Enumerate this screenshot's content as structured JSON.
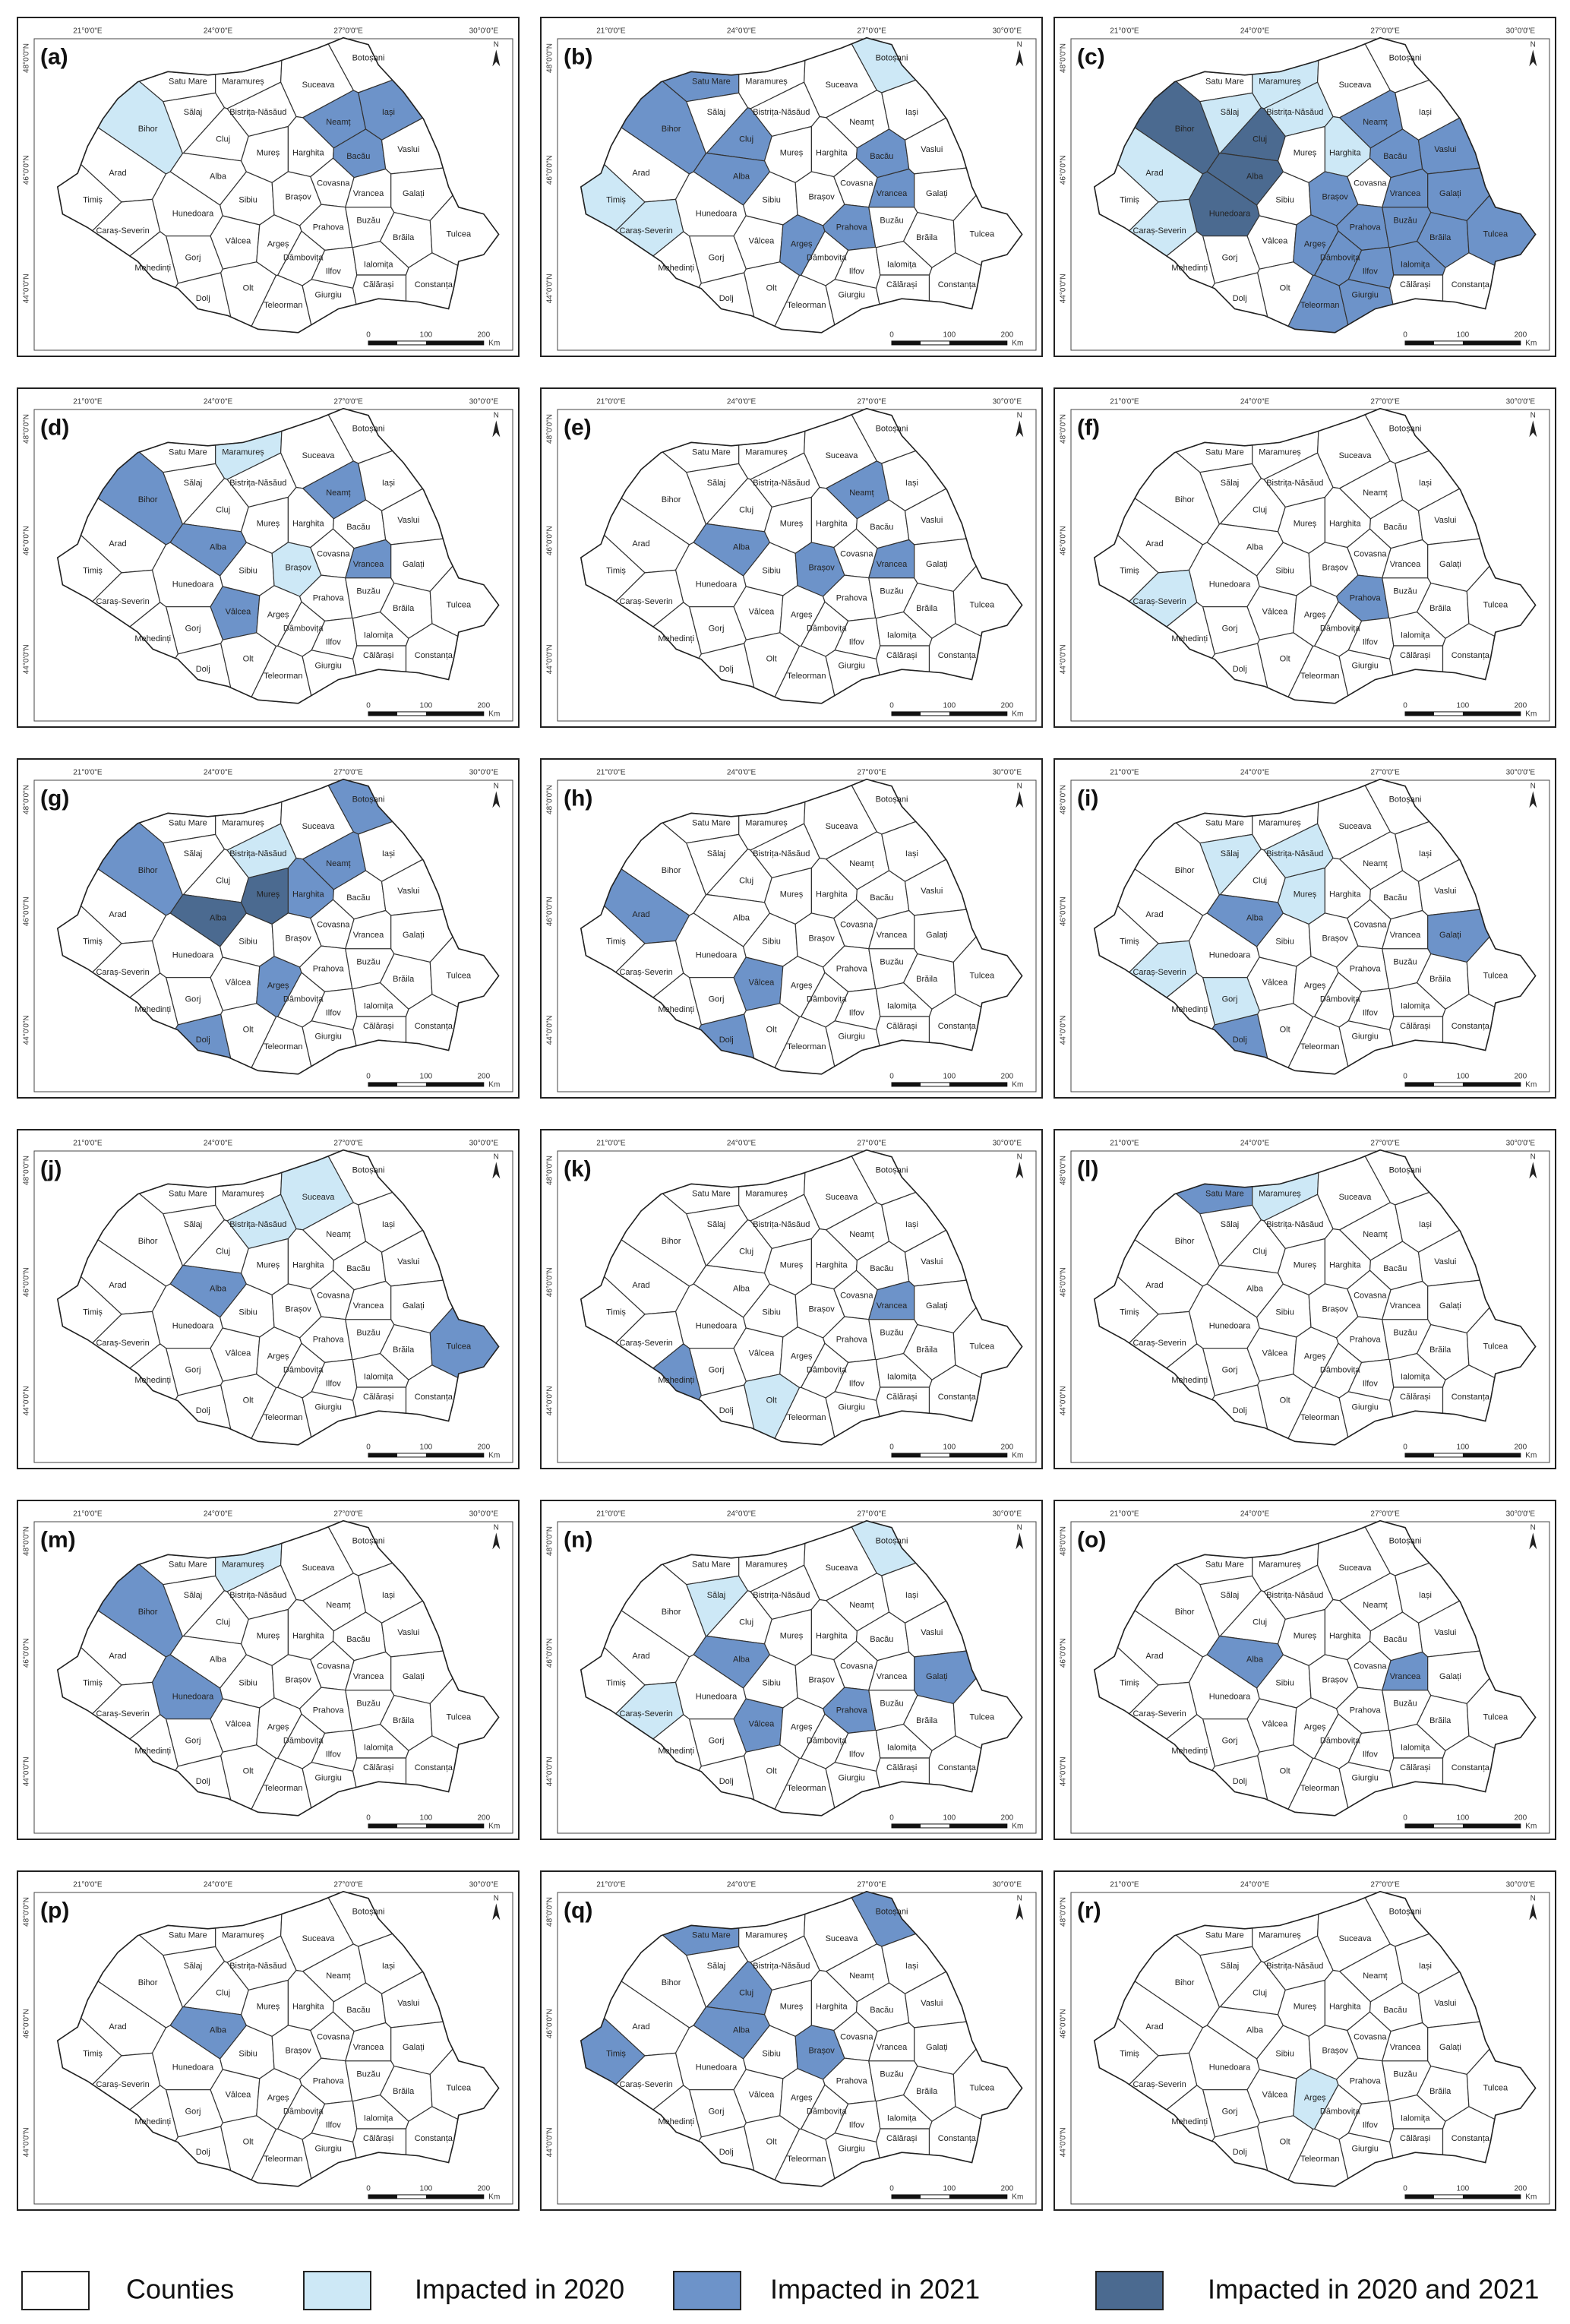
{
  "counties": [
    "Satu Mare",
    "Maramureș",
    "Botoșani",
    "Suceava",
    "Bihor",
    "Sălaj",
    "Bistrița-Năsăud",
    "Neamț",
    "Iași",
    "Cluj",
    "Mureș",
    "Harghita",
    "Bacău",
    "Vaslui",
    "Arad",
    "Alba",
    "Sibiu",
    "Brașov",
    "Covasna",
    "Vrancea",
    "Galați",
    "Timiș",
    "Hunedoara",
    "Caraș-Severin",
    "Vâlcea",
    "Argeș",
    "Prahova",
    "Buzău",
    "Brăila",
    "Tulcea",
    "Gorj",
    "Mehedinți",
    "Dâmbovița",
    "Ilfov",
    "Ialomița",
    "Dolj",
    "Olt",
    "Teleorman",
    "Giurgiu",
    "Călărași",
    "Constanța"
  ],
  "longitudes": [
    "21°0'0\"E",
    "24°0'0\"E",
    "27°0'0\"E",
    "30°0'0\"E"
  ],
  "latitudes": [
    "48°0'0\"N",
    "46°0'0\"N",
    "44°0'0\"N"
  ],
  "north": "N",
  "scale": {
    "ticks": [
      "0",
      "100",
      "200"
    ],
    "unit": "Km"
  },
  "legend": [
    {
      "label": "Counties",
      "color": "#ffffff"
    },
    {
      "label": "Impacted in 2020",
      "color": "#cde8f6"
    },
    {
      "label": "Impacted in 2021",
      "color": "#6d93c9"
    },
    {
      "label": "Impacted in 2020 and 2021",
      "color": "#4b6a90"
    }
  ],
  "panels": [
    {
      "label": "(a)",
      "impacted_2020": [
        "Bihor"
      ],
      "impacted_2021": [
        "Neamț",
        "Iași",
        "Bacău"
      ],
      "impacted_both": []
    },
    {
      "label": "(b)",
      "impacted_2020": [
        "Botoșani",
        "Timiș",
        "Caraș-Severin"
      ],
      "impacted_2021": [
        "Satu Mare",
        "Bihor",
        "Cluj",
        "Alba",
        "Bacău",
        "Vrancea",
        "Argeș",
        "Prahova"
      ],
      "impacted_both": []
    },
    {
      "label": "(c)",
      "impacted_2020": [
        "Maramureș",
        "Sălaj",
        "Bistrița-Năsăud",
        "Harghita",
        "Arad",
        "Caraș-Severin"
      ],
      "impacted_2021": [
        "Neamț",
        "Bacău",
        "Vaslui",
        "Vrancea",
        "Galați",
        "Brașov",
        "Buzău",
        "Brăila",
        "Tulcea",
        "Ialomița",
        "Prahova",
        "Dâmbovița",
        "Argeș",
        "Teleorman",
        "Giurgiu",
        "Ilfov"
      ],
      "impacted_both": [
        "Bihor",
        "Cluj",
        "Alba",
        "Hunedoara"
      ]
    },
    {
      "label": "(d)",
      "impacted_2020": [
        "Maramureș",
        "Brașov"
      ],
      "impacted_2021": [
        "Bihor",
        "Alba",
        "Neamț",
        "Vrancea",
        "Vâlcea"
      ],
      "impacted_both": []
    },
    {
      "label": "(e)",
      "impacted_2020": [],
      "impacted_2021": [
        "Alba",
        "Neamț",
        "Brașov",
        "Vrancea"
      ],
      "impacted_both": []
    },
    {
      "label": "(f)",
      "impacted_2020": [
        "Caraș-Severin"
      ],
      "impacted_2021": [
        "Prahova"
      ],
      "impacted_both": []
    },
    {
      "label": "(g)",
      "impacted_2020": [
        "Bistrița-Năsăud"
      ],
      "impacted_2021": [
        "Botoșani",
        "Bihor",
        "Neamț",
        "Harghita",
        "Argeș",
        "Dolj"
      ],
      "impacted_both": [
        "Mureș",
        "Alba"
      ]
    },
    {
      "label": "(h)",
      "impacted_2020": [],
      "impacted_2021": [
        "Arad",
        "Vâlcea",
        "Dolj"
      ],
      "impacted_both": []
    },
    {
      "label": "(i)",
      "impacted_2020": [
        "Sălaj",
        "Bistrița-Năsăud",
        "Mureș",
        "Caraș-Severin",
        "Gorj"
      ],
      "impacted_2021": [
        "Alba",
        "Galați",
        "Dolj"
      ],
      "impacted_both": []
    },
    {
      "label": "(j)",
      "impacted_2020": [
        "Suceava",
        "Bistrița-Năsăud"
      ],
      "impacted_2021": [
        "Alba",
        "Tulcea"
      ],
      "impacted_both": []
    },
    {
      "label": "(k)",
      "impacted_2020": [
        "Olt"
      ],
      "impacted_2021": [
        "Vrancea",
        "Mehedinți"
      ],
      "impacted_both": []
    },
    {
      "label": "(l)",
      "impacted_2020": [
        "Maramureș"
      ],
      "impacted_2021": [
        "Satu Mare"
      ],
      "impacted_both": []
    },
    {
      "label": "(m)",
      "impacted_2020": [
        "Maramureș"
      ],
      "impacted_2021": [
        "Bihor",
        "Hunedoara"
      ],
      "impacted_both": []
    },
    {
      "label": "(n)",
      "impacted_2020": [
        "Botoșani",
        "Sălaj",
        "Caraș-Severin"
      ],
      "impacted_2021": [
        "Alba",
        "Vâlcea",
        "Prahova",
        "Galați"
      ],
      "impacted_both": []
    },
    {
      "label": "(o)",
      "impacted_2020": [],
      "impacted_2021": [
        "Alba",
        "Vrancea"
      ],
      "impacted_both": []
    },
    {
      "label": "(p)",
      "impacted_2020": [],
      "impacted_2021": [
        "Alba"
      ],
      "impacted_both": []
    },
    {
      "label": "(q)",
      "impacted_2020": [],
      "impacted_2021": [
        "Satu Mare",
        "Botoșani",
        "Cluj",
        "Alba",
        "Timiș",
        "Brașov"
      ],
      "impacted_both": []
    },
    {
      "label": "(r)",
      "impacted_2020": [
        "Argeș"
      ],
      "impacted_2021": [],
      "impacted_both": []
    }
  ]
}
